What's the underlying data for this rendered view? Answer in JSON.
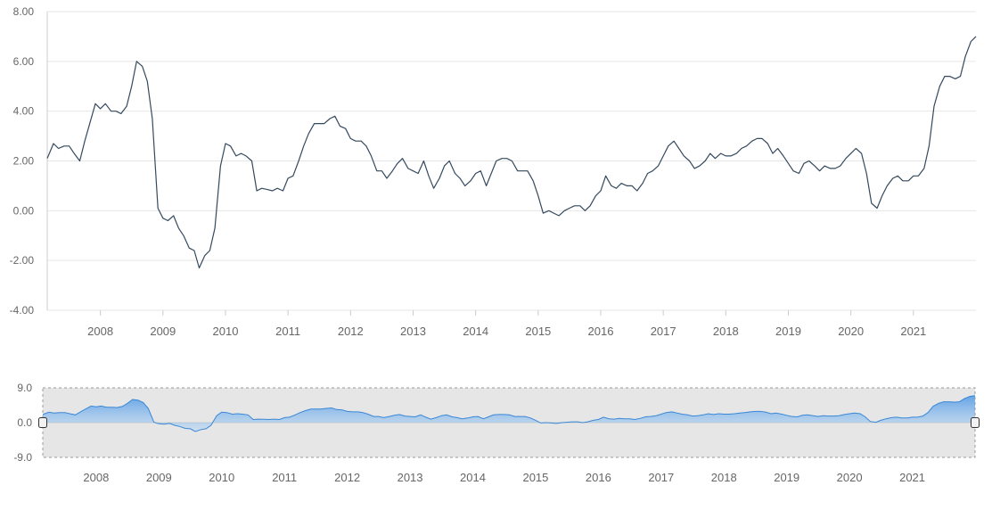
{
  "chart_data": [
    {
      "type": "line",
      "title": "",
      "xlabel": "",
      "ylabel": "",
      "ylim": [
        -4,
        8
      ],
      "yticks": [
        "8.00",
        "6.00",
        "4.00",
        "2.00",
        "0.00",
        "-2.00",
        "-4.00"
      ],
      "yvalues": [
        8,
        6,
        4,
        2,
        0,
        -2,
        -4
      ],
      "xticks": [
        "2008",
        "2009",
        "2010",
        "2011",
        "2012",
        "2013",
        "2014",
        "2015",
        "2016",
        "2017",
        "2018",
        "2019",
        "2020",
        "2021"
      ],
      "xlim": [
        2007.15,
        2022.0
      ],
      "grid": true,
      "series": [
        {
          "color": "#34495e",
          "x": [
            2007.15,
            2007.25,
            2007.33,
            2007.42,
            2007.5,
            2007.58,
            2007.67,
            2007.75,
            2007.83,
            2007.92,
            2008.0,
            2008.08,
            2008.17,
            2008.25,
            2008.33,
            2008.42,
            2008.5,
            2008.58,
            2008.67,
            2008.75,
            2008.83,
            2008.92,
            2009.0,
            2009.08,
            2009.17,
            2009.25,
            2009.33,
            2009.42,
            2009.5,
            2009.58,
            2009.67,
            2009.75,
            2009.83,
            2009.92,
            2010.0,
            2010.08,
            2010.17,
            2010.25,
            2010.33,
            2010.42,
            2010.5,
            2010.58,
            2010.67,
            2010.75,
            2010.83,
            2010.92,
            2011.0,
            2011.08,
            2011.17,
            2011.25,
            2011.33,
            2011.42,
            2011.5,
            2011.58,
            2011.67,
            2011.75,
            2011.83,
            2011.92,
            2012.0,
            2012.08,
            2012.17,
            2012.25,
            2012.33,
            2012.42,
            2012.5,
            2012.58,
            2012.67,
            2012.75,
            2012.83,
            2012.92,
            2013.0,
            2013.08,
            2013.17,
            2013.25,
            2013.33,
            2013.42,
            2013.5,
            2013.58,
            2013.67,
            2013.75,
            2013.83,
            2013.92,
            2014.0,
            2014.08,
            2014.17,
            2014.25,
            2014.33,
            2014.42,
            2014.5,
            2014.58,
            2014.67,
            2014.75,
            2014.83,
            2014.92,
            2015.0,
            2015.08,
            2015.17,
            2015.25,
            2015.33,
            2015.42,
            2015.5,
            2015.58,
            2015.67,
            2015.75,
            2015.83,
            2015.92,
            2016.0,
            2016.08,
            2016.17,
            2016.25,
            2016.33,
            2016.42,
            2016.5,
            2016.58,
            2016.67,
            2016.75,
            2016.83,
            2016.92,
            2017.0,
            2017.08,
            2017.17,
            2017.25,
            2017.33,
            2017.42,
            2017.5,
            2017.58,
            2017.67,
            2017.75,
            2017.83,
            2017.92,
            2018.0,
            2018.08,
            2018.17,
            2018.25,
            2018.33,
            2018.42,
            2018.5,
            2018.58,
            2018.67,
            2018.75,
            2018.83,
            2018.92,
            2019.0,
            2019.08,
            2019.17,
            2019.25,
            2019.33,
            2019.42,
            2019.5,
            2019.58,
            2019.67,
            2019.75,
            2019.83,
            2019.92,
            2020.0,
            2020.08,
            2020.17,
            2020.25,
            2020.33,
            2020.42,
            2020.5,
            2020.58,
            2020.67,
            2020.75,
            2020.83,
            2020.92,
            2021.0,
            2021.08,
            2021.17,
            2021.25,
            2021.33,
            2021.42,
            2021.5,
            2021.58,
            2021.67,
            2021.75,
            2021.83,
            2021.92,
            2022.0
          ],
          "values": [
            2.1,
            2.7,
            2.5,
            2.6,
            2.6,
            2.3,
            2.0,
            2.8,
            3.5,
            4.3,
            4.1,
            4.3,
            4.0,
            4.0,
            3.9,
            4.2,
            5.0,
            6.0,
            5.8,
            5.2,
            3.7,
            0.1,
            -0.3,
            -0.4,
            -0.2,
            -0.7,
            -1.0,
            -1.5,
            -1.6,
            -2.3,
            -1.8,
            -1.6,
            -0.7,
            1.8,
            2.7,
            2.6,
            2.2,
            2.3,
            2.2,
            2.0,
            0.8,
            0.9,
            0.85,
            0.8,
            0.9,
            0.8,
            1.3,
            1.4,
            2.0,
            2.6,
            3.1,
            3.5,
            3.5,
            3.5,
            3.7,
            3.8,
            3.4,
            3.3,
            2.9,
            2.8,
            2.8,
            2.6,
            2.2,
            1.6,
            1.6,
            1.3,
            1.6,
            1.9,
            2.1,
            1.7,
            1.6,
            1.5,
            2.0,
            1.4,
            0.9,
            1.3,
            1.8,
            2.0,
            1.5,
            1.3,
            1.0,
            1.2,
            1.5,
            1.6,
            1.0,
            1.5,
            2.0,
            2.1,
            2.1,
            2.0,
            1.6,
            1.6,
            1.6,
            1.2,
            0.6,
            -0.1,
            0.0,
            -0.1,
            -0.2,
            0.0,
            0.1,
            0.2,
            0.2,
            0.0,
            0.2,
            0.6,
            0.8,
            1.4,
            1.0,
            0.9,
            1.1,
            1.0,
            1.0,
            0.8,
            1.1,
            1.5,
            1.6,
            1.8,
            2.2,
            2.6,
            2.8,
            2.5,
            2.2,
            2.0,
            1.7,
            1.8,
            2.0,
            2.3,
            2.1,
            2.3,
            2.2,
            2.2,
            2.3,
            2.5,
            2.6,
            2.8,
            2.9,
            2.9,
            2.7,
            2.3,
            2.5,
            2.2,
            1.9,
            1.6,
            1.5,
            1.9,
            2.0,
            1.8,
            1.6,
            1.8,
            1.7,
            1.7,
            1.8,
            2.1,
            2.3,
            2.5,
            2.3,
            1.5,
            0.3,
            0.1,
            0.6,
            1.0,
            1.3,
            1.4,
            1.2,
            1.2,
            1.4,
            1.4,
            1.7,
            2.6,
            4.2,
            5.0,
            5.4,
            5.4,
            5.3,
            5.4,
            6.2,
            6.8,
            7.0
          ]
        }
      ]
    },
    {
      "type": "area",
      "title": "",
      "ylim": [
        -9,
        9
      ],
      "yticks": [
        "9.0",
        "0.0",
        "-9.0"
      ],
      "yvalues": [
        9,
        0,
        -9
      ],
      "xticks": [
        "2008",
        "2009",
        "2010",
        "2011",
        "2012",
        "2013",
        "2014",
        "2015",
        "2016",
        "2017",
        "2018",
        "2019",
        "2020",
        "2021"
      ],
      "xlim": [
        2007.15,
        2022.0
      ],
      "selection": [
        2007.15,
        2022.0
      ],
      "fill_color": "#7cb5ec",
      "line_color": "#3a87d6",
      "mask_color": "#e6e6e6"
    }
  ]
}
